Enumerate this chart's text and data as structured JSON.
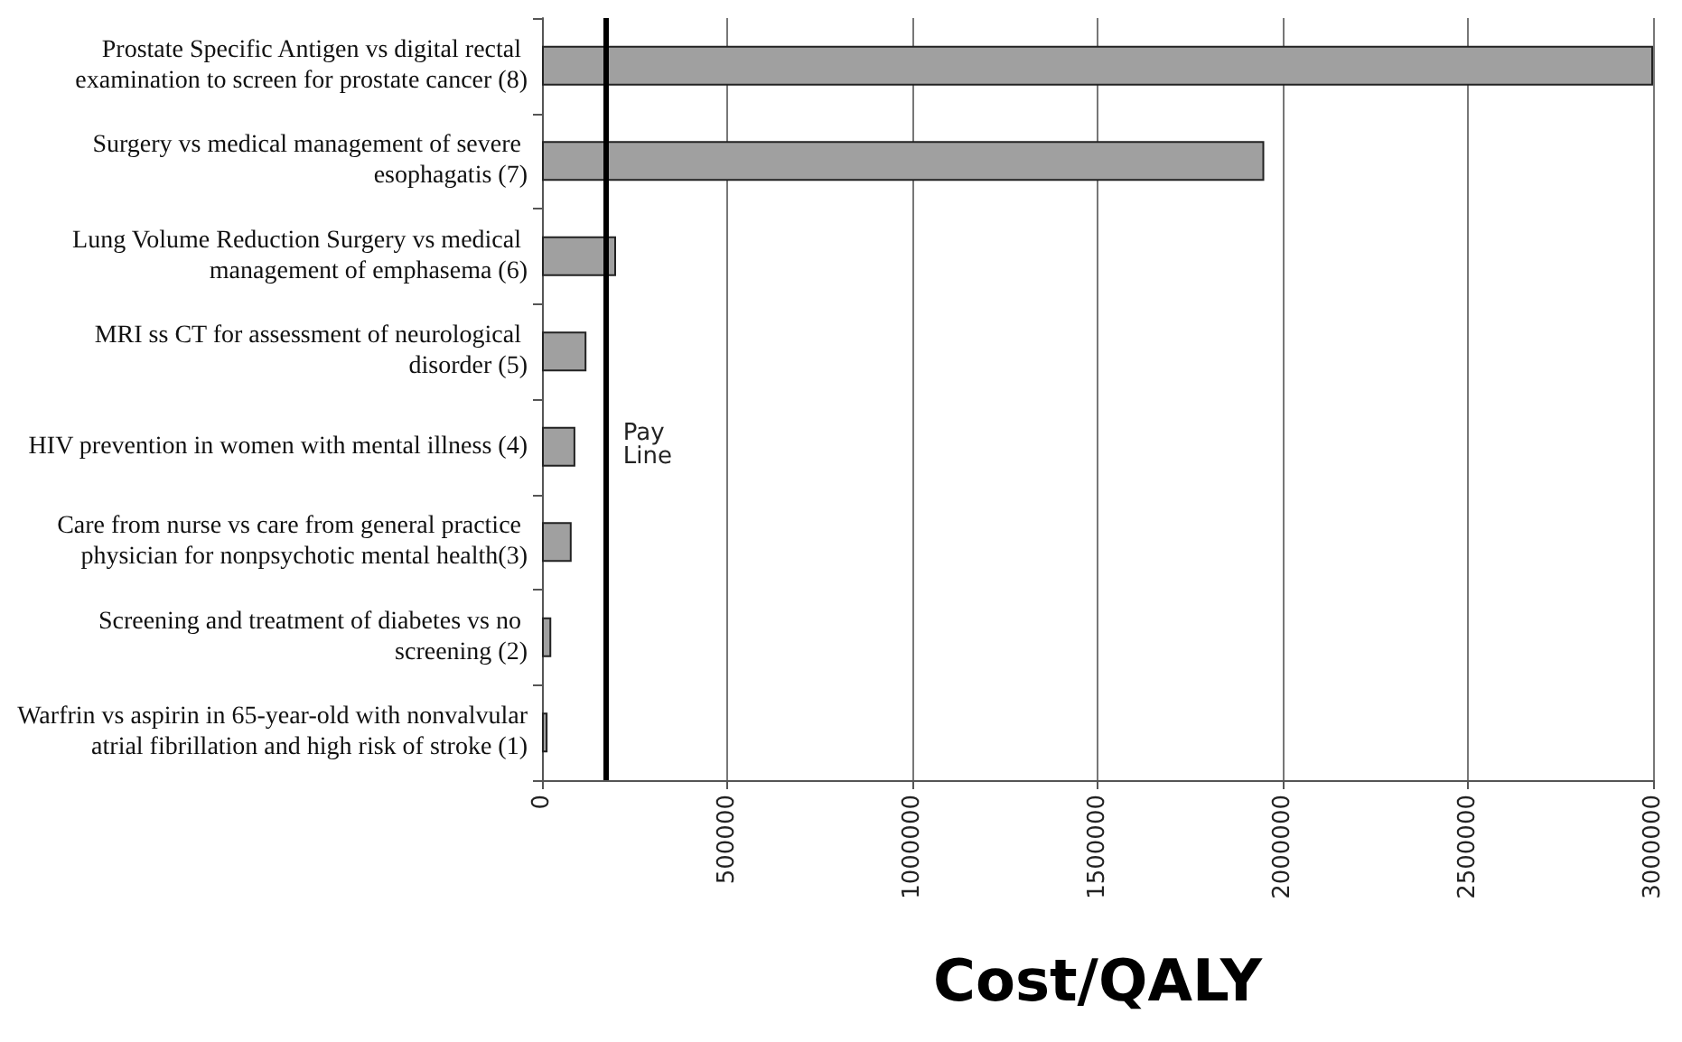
{
  "chart_data": {
    "type": "bar",
    "orientation": "horizontal",
    "xlabel": "Cost/QALY",
    "categories": [
      "Prostate Specific Antigen vs digital rectal examination to screen for prostate cancer (8)",
      "Surgery vs medical management of severe esophagatis (7)",
      "Lung Volume Reduction Surgery vs medical management of emphasema (6)",
      "MRI ss CT for assessment of neurological disorder (5)",
      "HIV prevention in women with mental illness (4)",
      "Care from nurse vs care from general practice physician for nonpsychotic mental health(3)",
      "Screening and treatment of diabetes vs no screening (2)",
      "Warfrin vs aspirin in 65-year-old with nonvalvular atrial fibrillation and high risk of stroke (1)"
    ],
    "values": [
      3000000,
      1950000,
      200000,
      120000,
      90000,
      80000,
      25000,
      15000
    ],
    "color": "#a0a0a0",
    "xlim": [
      0,
      3000000
    ],
    "xticks": [
      0,
      500000,
      1000000,
      1500000,
      2000000,
      2500000,
      3000000
    ],
    "grid": "x",
    "ref_lines": [
      {
        "axis": "x",
        "value": 170000,
        "label": "Pay Line",
        "color": "#000000"
      }
    ]
  }
}
